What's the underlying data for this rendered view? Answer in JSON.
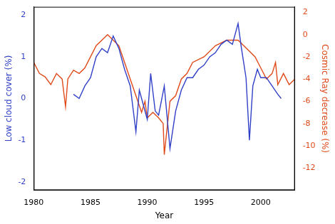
{
  "chart_data": {
    "type": "line",
    "x_label": "Year",
    "y_label": "Low cloud cover (%)",
    "y2_label": "Cosmic Ray decrease (%)",
    "xlim": [
      1980,
      2003
    ],
    "xticks": [
      1980,
      1985,
      1990,
      1995,
      2000
    ],
    "ylim": [
      -2.2,
      2.2
    ],
    "yticks": [
      -2,
      -1,
      0,
      1,
      2
    ],
    "y2lim": [
      -14,
      2.5
    ],
    "y2ticks": [
      -12,
      -10,
      -8,
      -6,
      -4,
      -2,
      0,
      2
    ],
    "grid": false,
    "series": [
      {
        "color": "#3040c8",
        "axis": "y",
        "x": [
          1983.5,
          1984,
          1984.5,
          1985,
          1985.5,
          1986,
          1986.5,
          1987,
          1987.5,
          1988,
          1988.5,
          1989,
          1989.3,
          1989.7,
          1990,
          1990.3,
          1990.7,
          1991,
          1991.5,
          1992,
          1992.5,
          1993,
          1993.5,
          1994,
          1994.5,
          1995,
          1995.5,
          1996,
          1996.5,
          1997,
          1997.5,
          1998,
          1998.3,
          1998.7,
          1999,
          1999.3,
          1999.7,
          2000,
          2000.5,
          2001,
          2001.5,
          2001.8
        ],
        "values": [
          0.1,
          0.0,
          0.3,
          0.5,
          1.0,
          1.2,
          1.1,
          1.5,
          1.2,
          0.7,
          0.3,
          -0.8,
          0.2,
          -0.2,
          -0.5,
          0.6,
          -0.3,
          -0.4,
          0.3,
          -1.2,
          -0.3,
          0.2,
          0.5,
          0.5,
          0.7,
          0.8,
          1.0,
          1.1,
          1.3,
          1.4,
          1.3,
          1.8,
          1.2,
          0.5,
          -1.0,
          0.3,
          0.7,
          0.5,
          0.5,
          0.3,
          0.1,
          0.0
        ]
      },
      {
        "color": "#e04a1a",
        "axis": "y2",
        "x": [
          1980,
          1980.5,
          1981,
          1981.5,
          1982,
          1982.5,
          1982.8,
          1983,
          1983.5,
          1984,
          1984.5,
          1985,
          1985.5,
          1986,
          1986.5,
          1987,
          1987.5,
          1988,
          1988.5,
          1989,
          1989.5,
          1989.8,
          1990,
          1990.5,
          1991,
          1991.4,
          1991.5,
          1992,
          1992.5,
          1993,
          1993.5,
          1994,
          1995,
          1996,
          1997,
          1998,
          1998.5,
          1999,
          1999.5,
          2000,
          2000.5,
          2001,
          2001.3,
          2001.5,
          2002,
          2002.5,
          2003
        ],
        "values": [
          -2.5,
          -3.5,
          -3.8,
          -4.5,
          -3.5,
          -4.0,
          -6.5,
          -4.0,
          -3.2,
          -3.5,
          -3.0,
          -2.0,
          -1.0,
          -0.5,
          0.0,
          -0.5,
          -1.0,
          -2.5,
          -4.0,
          -5.5,
          -7.0,
          -6.0,
          -7.5,
          -7.0,
          -7.5,
          -8.0,
          -10.8,
          -6.0,
          -5.5,
          -4.0,
          -3.5,
          -2.5,
          -2.0,
          -1.0,
          -0.5,
          -0.5,
          -1.0,
          -1.5,
          -2.0,
          -3.0,
          -4.0,
          -3.5,
          -2.5,
          -4.5,
          -3.5,
          -4.5,
          -4.0
        ]
      }
    ]
  }
}
